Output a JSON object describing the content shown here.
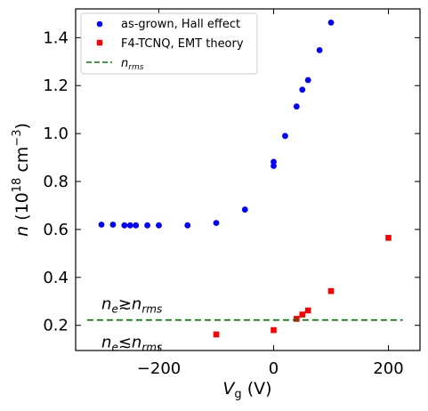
{
  "chart_data": {
    "type": "scatter",
    "xlabel": {
      "main": "V",
      "sub": "g",
      "unit": " (V)"
    },
    "ylabel": {
      "main": "n",
      "unit_prefix": " (10",
      "exp": "18",
      "unit_mid": " cm",
      "exp2": "−3",
      "unit_suffix": ")"
    },
    "xlim": [
      -345,
      255
    ],
    "ylim": [
      0.095,
      1.52
    ],
    "xticks": [
      {
        "value": -200,
        "label": "−200"
      },
      {
        "value": 0,
        "label": "0"
      },
      {
        "value": 200,
        "label": "200"
      }
    ],
    "yticks": [
      {
        "value": 0.2,
        "label": "0.2"
      },
      {
        "value": 0.4,
        "label": "0.4"
      },
      {
        "value": 0.6,
        "label": "0.6"
      },
      {
        "value": 0.8,
        "label": "0.8"
      },
      {
        "value": 1.0,
        "label": "1.0"
      },
      {
        "value": 1.2,
        "label": "1.2"
      },
      {
        "value": 1.4,
        "label": "1.4"
      }
    ],
    "legend_position": "top-left",
    "grid": false,
    "series": [
      {
        "name": "as-grown, Hall effect",
        "marker": "circle",
        "color": "#0000ff",
        "points": [
          [
            -300,
            0.62
          ],
          [
            -280,
            0.62
          ],
          [
            -260,
            0.617
          ],
          [
            -250,
            0.617
          ],
          [
            -240,
            0.617
          ],
          [
            -220,
            0.617
          ],
          [
            -200,
            0.617
          ],
          [
            -150,
            0.617
          ],
          [
            -100,
            0.627
          ],
          [
            -50,
            0.683
          ],
          [
            0,
            0.865
          ],
          [
            0,
            0.882
          ],
          [
            20,
            0.99
          ],
          [
            40,
            1.113
          ],
          [
            50,
            1.183
          ],
          [
            60,
            1.223
          ],
          [
            80,
            1.348
          ],
          [
            100,
            1.463
          ]
        ]
      },
      {
        "name": "F4-TCNQ, EMT theory",
        "marker": "square",
        "color": "#ff0000",
        "points": [
          [
            -100,
            0.162
          ],
          [
            0,
            0.18
          ],
          [
            40,
            0.227
          ],
          [
            50,
            0.245
          ],
          [
            60,
            0.262
          ],
          [
            100,
            0.343
          ],
          [
            200,
            0.565
          ]
        ]
      },
      {
        "name": "n",
        "name_sub": "rms",
        "marker": "dashed-line",
        "color": "#008000",
        "points": [
          [
            -325,
            0.222
          ],
          [
            225,
            0.222
          ]
        ]
      }
    ],
    "annotations": [
      {
        "main": "n",
        "sub": "e",
        "relation": "≳",
        "main2": "n",
        "sub2": "rms",
        "x": -300,
        "y": 0.29
      },
      {
        "main": "n",
        "sub": "e",
        "relation": "≲",
        "main2": "n",
        "sub2": "rms",
        "x": -300,
        "y": 0.13
      }
    ]
  }
}
